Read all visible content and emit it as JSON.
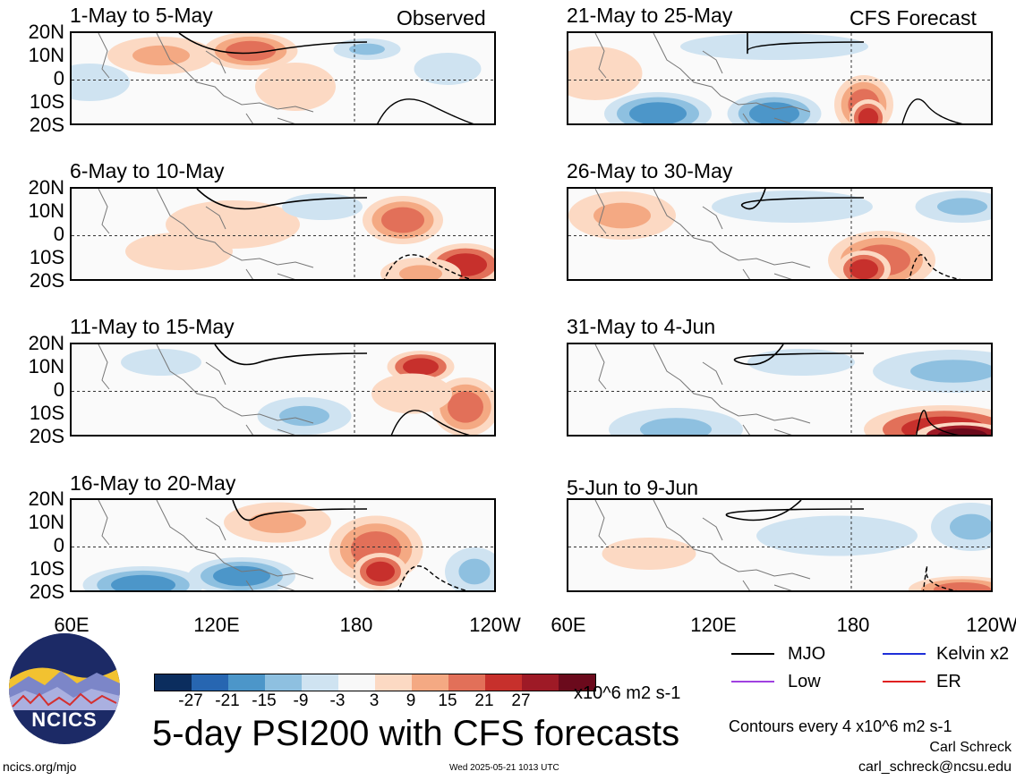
{
  "panels": [
    {
      "title": "1-May to 5-May",
      "tag": "Observed"
    },
    {
      "title": "6-May to 10-May",
      "tag": ""
    },
    {
      "title": "11-May to 15-May",
      "tag": ""
    },
    {
      "title": "16-May to 20-May",
      "tag": ""
    },
    {
      "title": "21-May to 25-May",
      "tag": "CFS Forecast"
    },
    {
      "title": "26-May to 30-May",
      "tag": ""
    },
    {
      "title": "31-May to 4-Jun",
      "tag": ""
    },
    {
      "title": "5-Jun to 9-Jun",
      "tag": ""
    }
  ],
  "lat_labels": [
    "20N",
    "10N",
    "0",
    "10S",
    "20S"
  ],
  "lon_labels": [
    "60E",
    "120E",
    "180",
    "120W"
  ],
  "colorbar": {
    "colors": [
      "#0b2d5e",
      "#2766b1",
      "#4c96c9",
      "#8ec0e0",
      "#cfe3f1",
      "#f8f8f8",
      "#fcd9c3",
      "#f4a983",
      "#e27059",
      "#c7302c",
      "#9e1a26",
      "#6b0a1c"
    ],
    "labels": [
      "-27",
      "-21",
      "-15",
      "-9",
      "-3",
      "3",
      "9",
      "15",
      "21",
      "27"
    ],
    "units": "x10^6 m2 s-1"
  },
  "main_title": "5-day PSI200 with CFS forecasts",
  "legend": [
    {
      "label": "MJO",
      "color": "#000000"
    },
    {
      "label": "Kelvin x2",
      "color": "#1f2fd9"
    },
    {
      "label": "Low",
      "color": "#a040e0"
    },
    {
      "label": "ER",
      "color": "#e02020"
    }
  ],
  "contour_note": "Contours every 4 x10^6 m2 s-1",
  "author": "Carl Schreck",
  "email": "carl_schreck@ncsu.edu",
  "site": "ncics.org/mjo",
  "timestamp": "Wed 2025-05-21 1013 UTC",
  "logo_text": "NCICS"
}
